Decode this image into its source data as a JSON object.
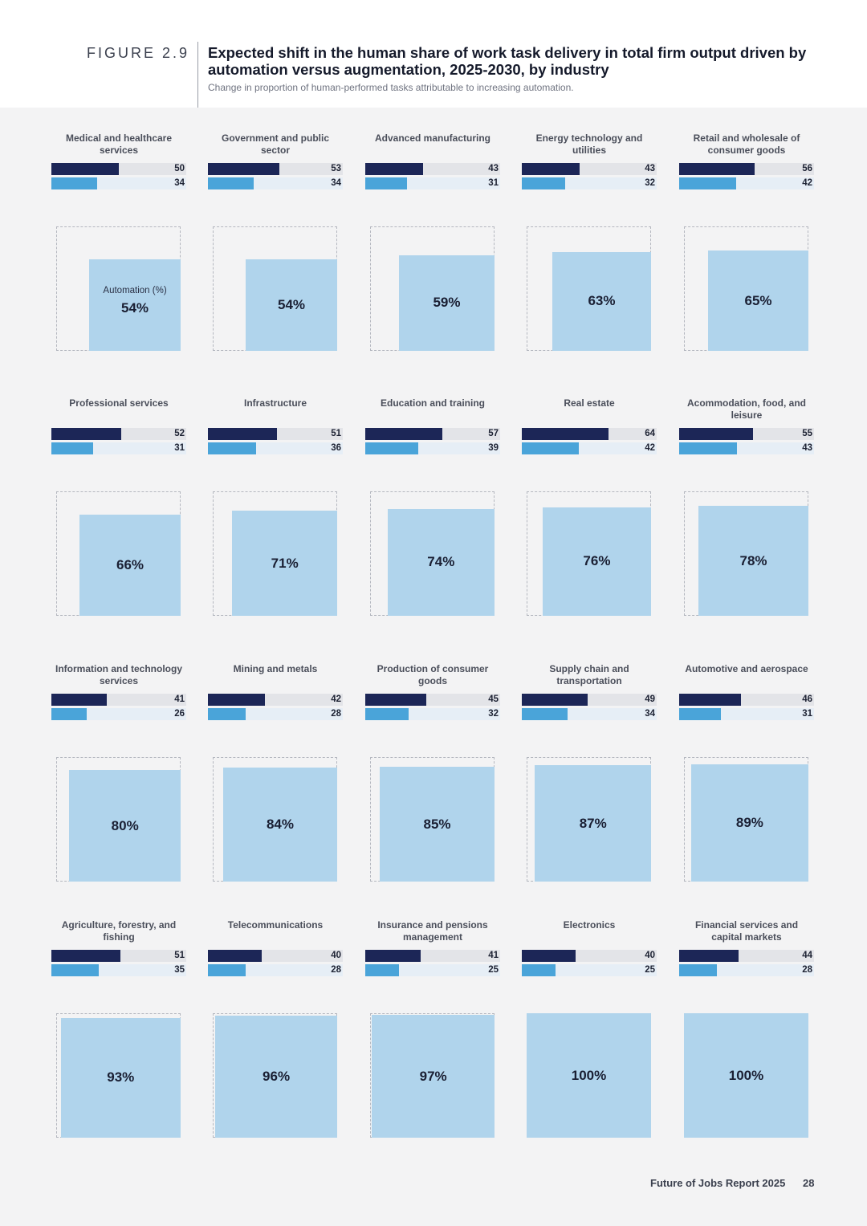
{
  "header": {
    "figure_label": "FIGURE 2.9",
    "title": "Expected shift in the human share of work task delivery in total firm output driven by automation versus augmentation, 2025-2030, by industry",
    "subtitle": "Change in proportion of human-performed tasks attributable to increasing automation."
  },
  "legend": {
    "automation_label": "Automation (%)"
  },
  "footer": {
    "report": "Future of Jobs Report 2025",
    "page": "28"
  },
  "colors": {
    "automation": "#1c2657",
    "augmentation": "#4aa4d9",
    "share_fill": "#b0d4ec"
  },
  "chart_data": {
    "type": "bar",
    "series": [
      {
        "key": "automation",
        "name": "Automation (%)"
      },
      {
        "key": "augmentation"
      }
    ],
    "industries": [
      {
        "name": "Medical and healthcare services",
        "automation": 50,
        "augmentation": 34,
        "automation_share": "54%"
      },
      {
        "name": "Government and public sector",
        "automation": 53,
        "augmentation": 34,
        "automation_share": "54%"
      },
      {
        "name": "Advanced manufacturing",
        "automation": 43,
        "augmentation": 31,
        "automation_share": "59%"
      },
      {
        "name": "Energy technology and utilities",
        "automation": 43,
        "augmentation": 32,
        "automation_share": "63%"
      },
      {
        "name": "Retail and wholesale of consumer goods",
        "automation": 56,
        "augmentation": 42,
        "automation_share": "65%"
      },
      {
        "name": "Professional services",
        "automation": 52,
        "augmentation": 31,
        "automation_share": "66%"
      },
      {
        "name": "Infrastructure",
        "automation": 51,
        "augmentation": 36,
        "automation_share": "71%"
      },
      {
        "name": "Education and training",
        "automation": 57,
        "augmentation": 39,
        "automation_share": "74%"
      },
      {
        "name": "Real estate",
        "automation": 64,
        "augmentation": 42,
        "automation_share": "76%"
      },
      {
        "name": "Acommodation, food, and leisure",
        "automation": 55,
        "augmentation": 43,
        "automation_share": "78%"
      },
      {
        "name": "Information and technology services",
        "automation": 41,
        "augmentation": 26,
        "automation_share": "80%"
      },
      {
        "name": "Mining and metals",
        "automation": 42,
        "augmentation": 28,
        "automation_share": "84%"
      },
      {
        "name": "Production of consumer goods",
        "automation": 45,
        "augmentation": 32,
        "automation_share": "85%"
      },
      {
        "name": "Supply chain and transportation",
        "automation": 49,
        "augmentation": 34,
        "automation_share": "87%"
      },
      {
        "name": "Automotive and aerospace",
        "automation": 46,
        "augmentation": 31,
        "automation_share": "89%"
      },
      {
        "name": "Agriculture, forestry, and fishing",
        "automation": 51,
        "augmentation": 35,
        "automation_share": "93%"
      },
      {
        "name": "Telecommunications",
        "automation": 40,
        "augmentation": 28,
        "automation_share": "96%"
      },
      {
        "name": "Insurance and pensions management",
        "automation": 41,
        "augmentation": 25,
        "automation_share": "97%"
      },
      {
        "name": "Electronics",
        "automation": 40,
        "augmentation": 25,
        "automation_share": "100%"
      },
      {
        "name": "Financial services and capital markets",
        "automation": 44,
        "augmentation": 28,
        "automation_share": "100%"
      }
    ]
  }
}
